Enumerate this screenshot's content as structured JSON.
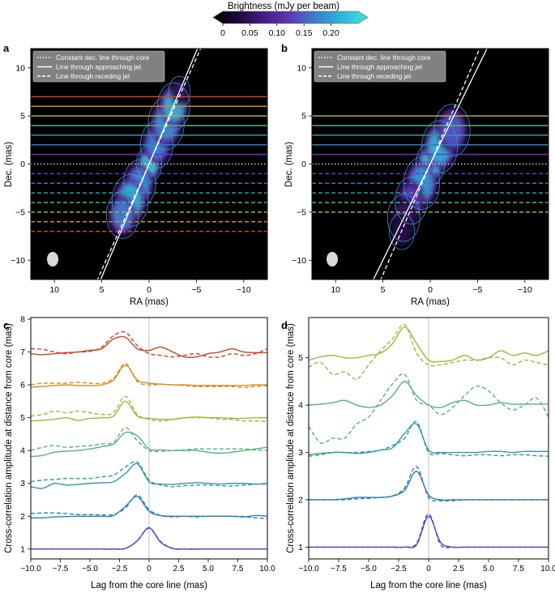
{
  "colorbar": {
    "title": "Brightness (mJy per beam)",
    "ticks": [
      "0",
      "0.05",
      "0.10",
      "0.15",
      "0.20"
    ],
    "tick_values": [
      0,
      0.05,
      0.1,
      0.15,
      0.2
    ],
    "vmax": 0.25,
    "stops": [
      "#000000",
      "#1e0b3a",
      "#4b1c86",
      "#5b3bb5",
      "#3d7fd0",
      "#2fb6da",
      "#3ee6e0"
    ]
  },
  "images": [
    {
      "panel_label": "a",
      "xlabel": "RA (mas)",
      "ylabel": "Dec. (mas)",
      "xticks": [
        "10",
        "5",
        "0",
        "−5",
        "−10"
      ],
      "xtick_values": [
        10,
        5,
        0,
        -5,
        -10
      ],
      "yticks": [
        "10",
        "5",
        "0",
        "−5",
        "−10"
      ],
      "ytick_values": [
        10,
        5,
        0,
        -5,
        -10
      ],
      "xlim": [
        12.5,
        -12.5
      ],
      "ylim": [
        -12,
        12
      ],
      "legend": [
        "Constant dec. line through core",
        "Line through approaching jet",
        "Line through receding jet"
      ],
      "positive_levels": [
        1,
        2,
        3,
        4,
        5,
        6,
        7
      ],
      "negative_levels": [
        -1,
        -2,
        -3,
        -4,
        -5,
        -6,
        -7
      ],
      "approaching_jet_slope": -2.35,
      "receding_jet_slope": -2.2,
      "jet_segments": [
        {
          "ra": 0,
          "dec": 0,
          "peak": 0.24,
          "sigma": 0.7
        },
        {
          "ra": -0.8,
          "dec": 2.0,
          "peak": 0.16,
          "sigma": 0.9
        },
        {
          "ra": -1.8,
          "dec": 4.2,
          "peak": 0.17,
          "sigma": 1.0
        },
        {
          "ra": -2.6,
          "dec": 6.0,
          "peak": 0.2,
          "sigma": 0.9
        },
        {
          "ra": -3.2,
          "dec": 7.5,
          "peak": 0.06,
          "sigma": 0.6
        },
        {
          "ra": 1.0,
          "dec": -2.0,
          "peak": 0.17,
          "sigma": 0.9
        },
        {
          "ra": 2.0,
          "dec": -3.8,
          "peak": 0.2,
          "sigma": 1.0
        },
        {
          "ra": 2.8,
          "dec": -5.3,
          "peak": 0.16,
          "sigma": 0.9
        }
      ]
    },
    {
      "panel_label": "b",
      "xlabel": "RA (mas)",
      "ylabel": "Dec. (mas)",
      "xticks": [
        "10",
        "5",
        "0",
        "−5",
        "−10"
      ],
      "xtick_values": [
        10,
        5,
        0,
        -5,
        -10
      ],
      "yticks": [
        "10",
        "5",
        "0",
        "−5",
        "−10"
      ],
      "ytick_values": [
        10,
        5,
        0,
        -5,
        -10
      ],
      "xlim": [
        12.5,
        -12.5
      ],
      "ylim": [
        -12,
        12
      ],
      "legend": [
        "Constant dec. line through core",
        "Line through approaching jet",
        "Line through receding jet"
      ],
      "positive_levels": [
        1,
        2,
        3,
        4,
        5
      ],
      "negative_levels": [
        -1,
        -2,
        -3,
        -4,
        -5
      ],
      "approaching_jet_slope": -2.0,
      "receding_jet_slope": -2.3,
      "jet_segments": [
        {
          "ra": 0,
          "dec": 0,
          "peak": 0.25,
          "sigma": 0.8
        },
        {
          "ra": -1.0,
          "dec": 1.8,
          "peak": 0.2,
          "sigma": 1.0
        },
        {
          "ra": -2.3,
          "dec": 3.5,
          "peak": 0.14,
          "sigma": 1.0
        },
        {
          "ra": 0.9,
          "dec": -2.0,
          "peak": 0.18,
          "sigma": 1.0
        },
        {
          "ra": 2.0,
          "dec": -3.8,
          "peak": 0.12,
          "sigma": 0.9
        },
        {
          "ra": 2.8,
          "dec": -5.6,
          "peak": 0.06,
          "sigma": 0.9
        },
        {
          "ra": 3.0,
          "dec": -7.0,
          "peak": 0.05,
          "sigma": 0.7
        }
      ]
    }
  ],
  "level_colors": {
    "1": "#5b3fbf",
    "2": "#2a7fb8",
    "3": "#2e9a9f",
    "4": "#57b27a",
    "5": "#a6b23a",
    "6": "#d68a1e",
    "7": "#c9452c"
  },
  "chart_data": [
    {
      "type": "line",
      "panel_label": "c",
      "xlabel": "Lag from the core line (mas)",
      "ylabel": "Cross-correlation amplitude at distance from core (mas)",
      "xlim": [
        -10,
        10
      ],
      "ylim": [
        0.7,
        8.05
      ],
      "xticks": [
        "−10.0",
        "−7.5",
        "−5.0",
        "−2.5",
        "0",
        "2.5",
        "5.0",
        "7.5",
        "10.0"
      ],
      "xtick_values": [
        -10,
        -7.5,
        -5,
        -2.5,
        0,
        2.5,
        5,
        7.5,
        10
      ],
      "yticks": [
        "1",
        "2",
        "3",
        "4",
        "5",
        "6",
        "7",
        "8"
      ],
      "ytick_values": [
        1,
        2,
        3,
        4,
        5,
        6,
        7,
        8
      ],
      "x": [
        -10,
        -9,
        -8,
        -7,
        -6,
        -5,
        -4,
        -3,
        -2,
        -1,
        0,
        1,
        2,
        3,
        4,
        5,
        6,
        7,
        8,
        9,
        10
      ],
      "series": [
        {
          "name": "1 solid",
          "distance": 1,
          "style": "solid",
          "values": [
            1.0,
            1.0,
            1.0,
            1.0,
            1.0,
            1.0,
            1.0,
            1.0,
            1.02,
            1.25,
            1.65,
            1.2,
            1.02,
            1.0,
            1.0,
            1.0,
            1.0,
            1.0,
            1.0,
            1.0,
            1.0
          ]
        },
        {
          "name": "1 dashed",
          "distance": -1,
          "style": "dashed",
          "values": [
            1.0,
            1.0,
            1.0,
            1.0,
            1.0,
            1.0,
            1.0,
            1.0,
            1.02,
            1.25,
            1.64,
            1.22,
            1.02,
            1.0,
            1.0,
            1.0,
            1.0,
            1.0,
            1.0,
            1.0,
            1.0
          ]
        },
        {
          "name": "2 solid",
          "distance": 2,
          "style": "solid",
          "values": [
            1.95,
            1.95,
            1.98,
            1.99,
            2.0,
            2.0,
            2.0,
            2.02,
            2.3,
            2.6,
            2.15,
            2.02,
            2.0,
            2.0,
            2.0,
            2.0,
            2.0,
            2.0,
            1.98,
            2.02,
            2.0
          ]
        },
        {
          "name": "2 dashed",
          "distance": -2,
          "style": "dashed",
          "values": [
            2.08,
            2.1,
            2.1,
            2.08,
            2.05,
            2.05,
            2.04,
            2.05,
            2.25,
            2.65,
            2.2,
            2.02,
            1.98,
            2.0,
            1.98,
            2.0,
            2.0,
            2.0,
            1.99,
            1.95,
            1.93
          ]
        },
        {
          "name": "3 solid",
          "distance": 3,
          "style": "solid",
          "values": [
            2.9,
            2.85,
            3.0,
            2.95,
            2.97,
            3.0,
            3.02,
            3.05,
            3.3,
            3.6,
            3.05,
            2.98,
            2.97,
            3.0,
            3.02,
            3.0,
            2.98,
            3.0,
            3.0,
            2.98,
            3.0
          ]
        },
        {
          "name": "3 dashed",
          "distance": -3,
          "style": "dashed",
          "values": [
            3.05,
            3.1,
            3.12,
            3.15,
            3.15,
            3.15,
            3.2,
            3.25,
            3.5,
            3.65,
            3.1,
            2.95,
            2.9,
            2.93,
            2.95,
            2.95,
            2.93,
            2.92,
            2.95,
            2.97,
            2.98
          ]
        },
        {
          "name": "4 solid",
          "distance": 4,
          "style": "solid",
          "values": [
            3.82,
            3.85,
            3.95,
            3.98,
            4.0,
            4.05,
            4.12,
            4.2,
            4.55,
            4.45,
            4.05,
            4.02,
            4.0,
            4.0,
            4.0,
            3.95,
            3.92,
            3.95,
            4.0,
            4.05,
            4.1
          ]
        },
        {
          "name": "4 dashed",
          "distance": -4,
          "style": "dashed",
          "values": [
            4.0,
            4.1,
            4.15,
            4.1,
            4.12,
            4.15,
            4.2,
            4.25,
            4.7,
            4.3,
            4.0,
            3.98,
            4.0,
            4.02,
            4.05,
            4.05,
            4.05,
            4.05,
            4.05,
            4.02,
            4.0
          ]
        },
        {
          "name": "5 solid",
          "distance": 5,
          "style": "solid",
          "values": [
            4.9,
            4.92,
            4.95,
            5.0,
            4.92,
            4.98,
            5.0,
            5.05,
            5.5,
            5.05,
            4.98,
            4.95,
            4.95,
            5.0,
            5.02,
            5.0,
            5.0,
            4.98,
            4.98,
            5.0,
            5.0
          ]
        },
        {
          "name": "5 dashed",
          "distance": -5,
          "style": "dashed",
          "values": [
            5.05,
            5.1,
            5.2,
            5.15,
            5.2,
            5.15,
            5.1,
            5.15,
            5.65,
            5.1,
            4.95,
            4.9,
            4.95,
            5.0,
            5.0,
            5.0,
            4.95,
            4.95,
            4.9,
            4.9,
            4.88
          ]
        },
        {
          "name": "6 solid",
          "distance": 6,
          "style": "solid",
          "values": [
            5.93,
            5.95,
            5.98,
            6.0,
            5.98,
            5.98,
            6.0,
            6.15,
            6.6,
            6.15,
            6.05,
            6.02,
            6.0,
            6.0,
            5.98,
            5.98,
            5.98,
            5.98,
            5.98,
            6.0,
            6.0
          ]
        },
        {
          "name": "6 dashed",
          "distance": -6,
          "style": "dashed",
          "values": [
            6.0,
            6.05,
            6.05,
            6.05,
            6.08,
            6.05,
            6.05,
            6.2,
            6.65,
            6.1,
            6.0,
            6.02,
            6.0,
            5.98,
            5.95,
            5.95,
            5.95,
            5.95,
            5.92,
            5.95,
            5.98
          ]
        },
        {
          "name": "7 solid",
          "distance": 7,
          "style": "solid",
          "values": [
            6.95,
            6.92,
            6.95,
            6.98,
            7.0,
            7.05,
            7.1,
            7.4,
            7.45,
            7.1,
            7.05,
            7.15,
            7.0,
            6.85,
            6.85,
            6.95,
            7.0,
            7.1,
            7.0,
            6.98,
            6.98
          ]
        },
        {
          "name": "7 dashed",
          "distance": -7,
          "style": "dashed",
          "values": [
            7.1,
            7.08,
            7.0,
            6.95,
            7.0,
            7.02,
            7.15,
            7.5,
            7.6,
            7.2,
            6.95,
            6.9,
            6.85,
            6.9,
            6.95,
            6.85,
            6.85,
            6.95,
            6.9,
            6.95,
            7.1
          ]
        }
      ]
    },
    {
      "type": "line",
      "panel_label": "d",
      "xlabel": "Lag from the core line (mas)",
      "ylabel": "Cross-correlation amplitude at distance from core (mas)",
      "xlim": [
        -10,
        10
      ],
      "ylim": [
        0.75,
        5.85
      ],
      "xticks": [
        "−10.0",
        "−7.5",
        "−5.0",
        "−2.5",
        "0",
        "2.5",
        "5.0",
        "7.5",
        "10.0"
      ],
      "xtick_values": [
        -10,
        -7.5,
        -5,
        -2.5,
        0,
        2.5,
        5,
        7.5,
        10
      ],
      "yticks": [
        "1",
        "2",
        "3",
        "4",
        "5"
      ],
      "ytick_values": [
        1,
        2,
        3,
        4,
        5
      ],
      "x": [
        -10,
        -9,
        -8,
        -7,
        -6,
        -5,
        -4,
        -3,
        -2,
        -1,
        0,
        1,
        2,
        3,
        4,
        5,
        6,
        7,
        8,
        9,
        10
      ],
      "series": [
        {
          "name": "1 solid",
          "distance": 1,
          "style": "solid",
          "values": [
            1.0,
            1.0,
            1.0,
            1.0,
            1.0,
            1.0,
            1.0,
            1.0,
            1.0,
            1.05,
            1.65,
            1.1,
            1.0,
            1.0,
            1.0,
            1.0,
            1.0,
            1.0,
            1.0,
            1.0,
            1.0
          ]
        },
        {
          "name": "1 dashed",
          "distance": -1,
          "style": "dashed",
          "values": [
            1.0,
            1.0,
            1.0,
            1.0,
            1.0,
            1.0,
            1.0,
            1.0,
            1.0,
            1.08,
            1.7,
            1.05,
            1.0,
            1.0,
            1.0,
            1.0,
            1.0,
            1.0,
            1.0,
            1.0,
            1.0
          ]
        },
        {
          "name": "2 solid",
          "distance": 2,
          "style": "solid",
          "values": [
            2.0,
            2.0,
            2.0,
            2.02,
            2.05,
            2.05,
            2.05,
            2.08,
            2.2,
            2.6,
            2.1,
            2.0,
            2.0,
            2.0,
            2.0,
            2.0,
            2.0,
            2.0,
            2.0,
            2.0,
            2.0
          ]
        },
        {
          "name": "2 dashed",
          "distance": -2,
          "style": "dashed",
          "values": [
            2.0,
            2.0,
            2.0,
            2.0,
            2.02,
            2.03,
            2.05,
            2.08,
            2.25,
            2.7,
            2.05,
            1.98,
            1.98,
            2.0,
            2.0,
            2.0,
            2.0,
            2.0,
            2.0,
            2.0,
            2.0
          ]
        },
        {
          "name": "3 solid",
          "distance": 3,
          "style": "solid",
          "values": [
            2.95,
            2.98,
            3.0,
            3.0,
            2.98,
            3.0,
            3.05,
            3.1,
            3.4,
            3.6,
            3.05,
            3.0,
            3.0,
            3.0,
            3.0,
            3.02,
            3.02,
            3.0,
            3.02,
            3.02,
            3.02
          ]
        },
        {
          "name": "3 dashed",
          "distance": -3,
          "style": "dashed",
          "values": [
            2.92,
            2.95,
            3.0,
            3.0,
            3.0,
            3.02,
            3.05,
            3.15,
            3.3,
            3.65,
            3.0,
            2.98,
            2.95,
            2.93,
            2.95,
            2.95,
            2.93,
            2.95,
            2.95,
            2.93,
            2.92
          ]
        },
        {
          "name": "4 solid",
          "distance": 4,
          "style": "solid",
          "values": [
            4.0,
            4.02,
            4.05,
            4.1,
            4.0,
            3.95,
            4.0,
            4.2,
            4.5,
            4.2,
            4.0,
            3.95,
            4.05,
            4.1,
            4.0,
            4.0,
            4.05,
            4.02,
            4.02,
            4.02,
            4.02
          ]
        },
        {
          "name": "4 dashed",
          "distance": -4,
          "style": "dashed",
          "values": [
            3.55,
            3.2,
            3.3,
            3.3,
            3.6,
            3.75,
            4.1,
            4.45,
            4.65,
            4.1,
            4.0,
            3.8,
            3.95,
            4.2,
            4.4,
            4.3,
            4.05,
            3.9,
            4.0,
            4.15,
            3.75
          ]
        },
        {
          "name": "5 solid",
          "distance": 5,
          "style": "solid",
          "values": [
            4.95,
            5.02,
            5.05,
            5.0,
            5.0,
            5.05,
            5.1,
            5.3,
            5.65,
            5.3,
            4.95,
            4.92,
            4.95,
            5.05,
            4.95,
            5.0,
            5.15,
            5.05,
            5.1,
            5.05,
            5.15
          ]
        },
        {
          "name": "5 dashed",
          "distance": -5,
          "style": "dashed",
          "values": [
            4.8,
            4.9,
            4.65,
            4.7,
            4.55,
            4.85,
            5.15,
            5.4,
            5.7,
            5.1,
            4.85,
            4.85,
            4.9,
            4.95,
            4.95,
            5.0,
            5.0,
            4.85,
            4.95,
            4.9,
            4.85
          ]
        }
      ]
    }
  ]
}
